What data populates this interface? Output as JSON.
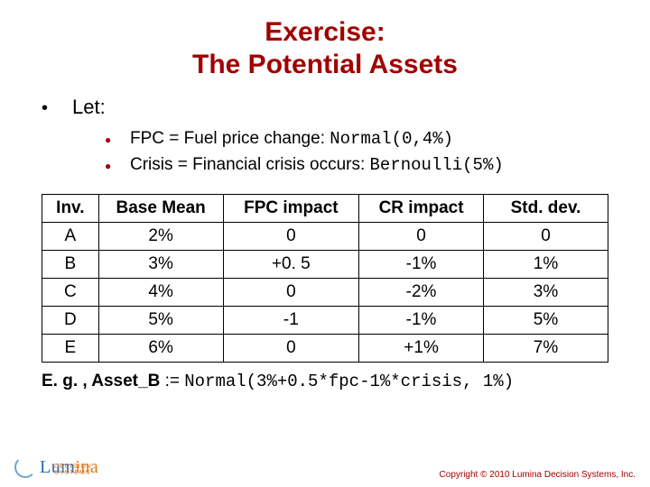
{
  "title_line1": "Exercise:",
  "title_line2": "The Potential Assets",
  "let_label": "Let:",
  "bullets": {
    "b1": {
      "text": "FPC = Fuel price change: ",
      "code": "Normal(0,4%)"
    },
    "b2": {
      "text": "Crisis = Financial crisis occurs: ",
      "code": "Bernoulli(5%)"
    }
  },
  "table": {
    "headers": [
      "Inv.",
      "Base Mean",
      "FPC impact",
      "CR impact",
      "Std. dev."
    ],
    "rows": [
      [
        "A",
        "2%",
        "0",
        "0",
        "0"
      ],
      [
        "B",
        "3%",
        "+0. 5",
        "-1%",
        "1%"
      ],
      [
        "C",
        "4%",
        "0",
        "-2%",
        "3%"
      ],
      [
        "D",
        "5%",
        "-1",
        "-1%",
        "5%"
      ],
      [
        "E",
        "6%",
        "0",
        "+1%",
        "7%"
      ]
    ],
    "col_widths_pct": [
      10,
      22,
      24,
      22,
      22
    ],
    "border_color": "#000000",
    "header_fontweight": "bold",
    "cell_fontsize_pt": 14
  },
  "example": {
    "prefix": "E. g. , ",
    "asset": "Asset_B",
    "assign": " := ",
    "code": "Normal(3%+0.5*fpc-1%*crisis, 1%)"
  },
  "logo": {
    "name": "Lumina",
    "tagline": "DECISION SYSTEMS",
    "blue": "#2a6bb0",
    "orange": "#e07a1f"
  },
  "copyright": "Copyright © 2010 Lumina Decision Systems, Inc.",
  "colors": {
    "title": "#a00000",
    "text": "#000000",
    "sub_bullet": "#a00000",
    "background": "#ffffff"
  },
  "fontsizes_pt": {
    "title": 22,
    "let": 16,
    "sub": 14,
    "table": 14,
    "example": 14,
    "copyright": 7
  }
}
